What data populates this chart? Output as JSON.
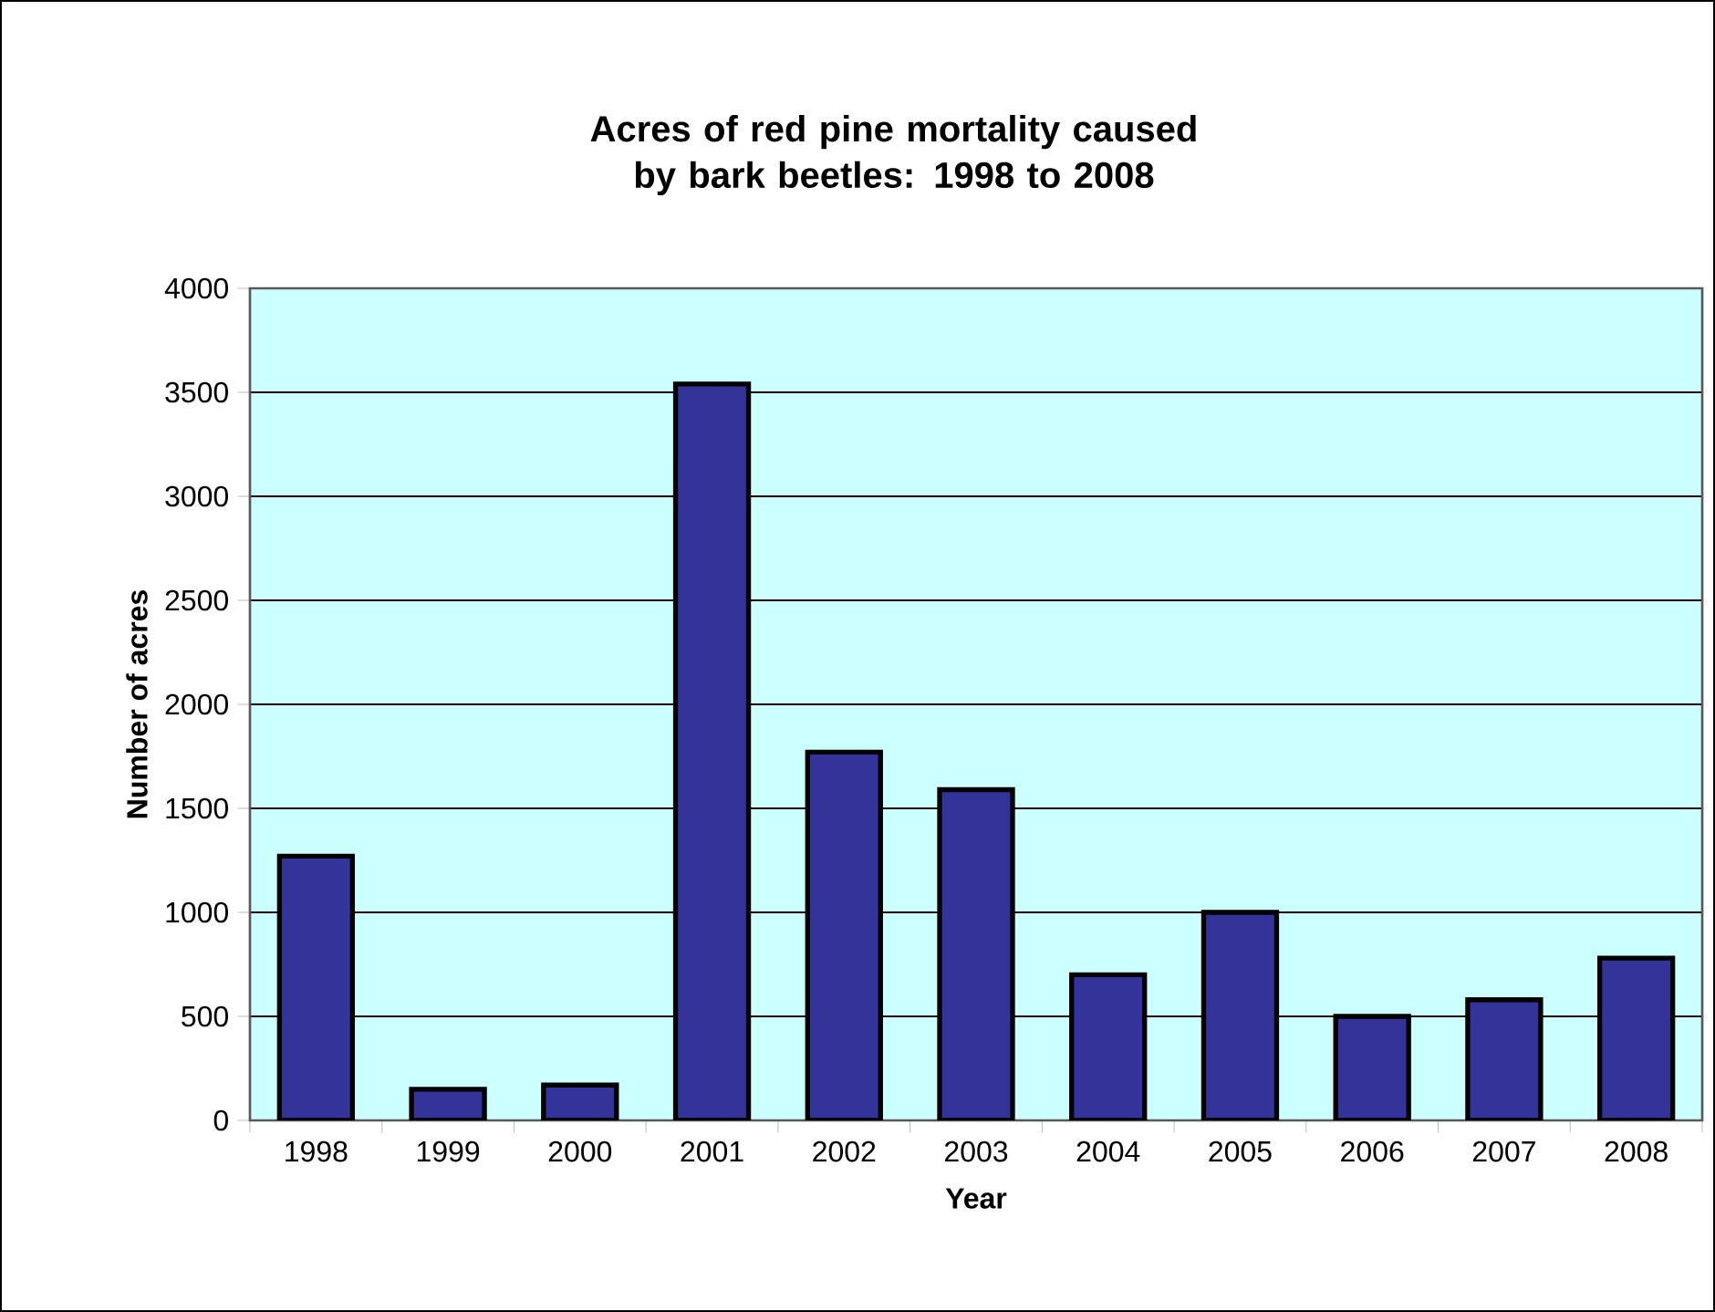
{
  "chart_data": {
    "type": "bar",
    "title": "Acres of red pine mortality caused by bark beetles: 1998 to 2008",
    "xlabel": "Year",
    "ylabel": "Number of acres",
    "categories": [
      "1998",
      "1999",
      "2000",
      "2001",
      "2002",
      "2003",
      "2004",
      "2005",
      "2006",
      "2007",
      "2008"
    ],
    "values": [
      1270,
      150,
      170,
      3540,
      1770,
      1590,
      700,
      1000,
      500,
      580,
      780
    ],
    "color": "#333399",
    "ylim": [
      0,
      4000
    ],
    "yticks": [
      0,
      500,
      1000,
      1500,
      2000,
      2500,
      3000,
      3500,
      4000
    ],
    "grid": "y"
  }
}
